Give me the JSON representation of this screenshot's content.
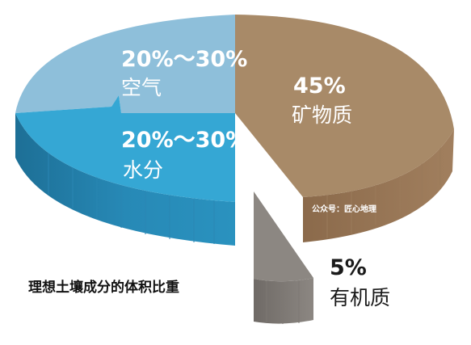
{
  "chart_data": {
    "type": "pie",
    "title": "理想土壤成分的体积比重",
    "slices": [
      {
        "key": "mineral",
        "value_label": "45%",
        "name": "矿物质",
        "value": 45,
        "color": "#a88a68"
      },
      {
        "key": "organic",
        "value_label": "5%",
        "name": "有机质",
        "value": 5,
        "color": "#8c8782"
      },
      {
        "key": "water",
        "value_label": "20%～30%",
        "name": "水分",
        "value": 25,
        "color": "#35a7d4"
      },
      {
        "key": "air",
        "value_label": "20%～30%",
        "name": "空气",
        "value": 25,
        "color": "#8ebfda"
      }
    ]
  },
  "watermark": "公众号：匠心地理"
}
